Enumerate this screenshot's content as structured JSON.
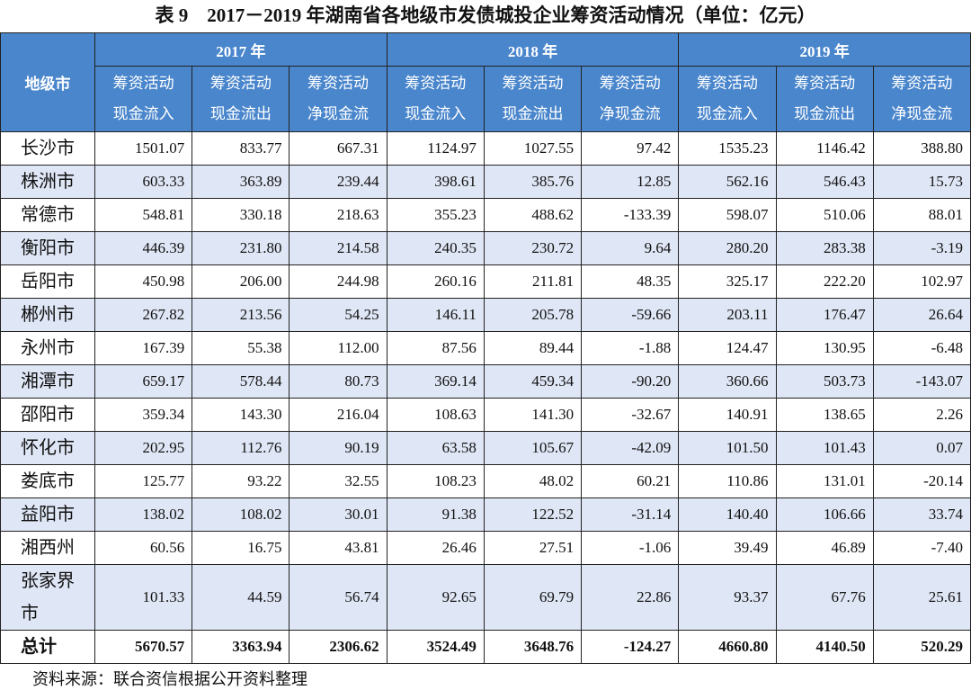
{
  "header": {
    "title": "表 9　2017－2019 年湖南省各地级市发债城投企业筹资活动情况（单位：亿元）"
  },
  "table": {
    "first_header": "地级市",
    "years": [
      "2017 年",
      "2018 年",
      "2019 年"
    ],
    "sub_headers": [
      [
        "筹资活动",
        "现金流入"
      ],
      [
        "筹资活动",
        "现金流出"
      ],
      [
        "筹资活动",
        "净现金流"
      ]
    ],
    "rows": [
      {
        "name": "长沙市",
        "values": [
          "1501.07",
          "833.77",
          "667.31",
          "1124.97",
          "1027.55",
          "97.42",
          "1535.23",
          "1146.42",
          "388.80"
        ]
      },
      {
        "name": "株洲市",
        "values": [
          "603.33",
          "363.89",
          "239.44",
          "398.61",
          "385.76",
          "12.85",
          "562.16",
          "546.43",
          "15.73"
        ]
      },
      {
        "name": "常德市",
        "values": [
          "548.81",
          "330.18",
          "218.63",
          "355.23",
          "488.62",
          "-133.39",
          "598.07",
          "510.06",
          "88.01"
        ]
      },
      {
        "name": "衡阳市",
        "values": [
          "446.39",
          "231.80",
          "214.58",
          "240.35",
          "230.72",
          "9.64",
          "280.20",
          "283.38",
          "-3.19"
        ]
      },
      {
        "name": "岳阳市",
        "values": [
          "450.98",
          "206.00",
          "244.98",
          "260.16",
          "211.81",
          "48.35",
          "325.17",
          "222.20",
          "102.97"
        ]
      },
      {
        "name": "郴州市",
        "values": [
          "267.82",
          "213.56",
          "54.25",
          "146.11",
          "205.78",
          "-59.66",
          "203.11",
          "176.47",
          "26.64"
        ]
      },
      {
        "name": "永州市",
        "values": [
          "167.39",
          "55.38",
          "112.00",
          "87.56",
          "89.44",
          "-1.88",
          "124.47",
          "130.95",
          "-6.48"
        ]
      },
      {
        "name": "湘潭市",
        "values": [
          "659.17",
          "578.44",
          "80.73",
          "369.14",
          "459.34",
          "-90.20",
          "360.66",
          "503.73",
          "-143.07"
        ]
      },
      {
        "name": "邵阳市",
        "values": [
          "359.34",
          "143.30",
          "216.04",
          "108.63",
          "141.30",
          "-32.67",
          "140.91",
          "138.65",
          "2.26"
        ]
      },
      {
        "name": "怀化市",
        "values": [
          "202.95",
          "112.76",
          "90.19",
          "63.58",
          "105.67",
          "-42.09",
          "101.50",
          "101.43",
          "0.07"
        ]
      },
      {
        "name": "娄底市",
        "values": [
          "125.77",
          "93.22",
          "32.55",
          "108.23",
          "48.02",
          "60.21",
          "110.86",
          "131.01",
          "-20.14"
        ]
      },
      {
        "name": "益阳市",
        "values": [
          "138.02",
          "108.02",
          "30.01",
          "91.38",
          "122.52",
          "-31.14",
          "140.40",
          "106.66",
          "33.74"
        ]
      },
      {
        "name": "湘西州",
        "values": [
          "60.56",
          "16.75",
          "43.81",
          "26.46",
          "27.51",
          "-1.06",
          "39.49",
          "46.89",
          "-7.40"
        ]
      },
      {
        "name": "张家界市",
        "values": [
          "101.33",
          "44.59",
          "56.74",
          "92.65",
          "69.79",
          "22.86",
          "93.37",
          "67.76",
          "25.61"
        ]
      }
    ],
    "total": {
      "name": "总计",
      "values": [
        "5670.57",
        "3363.94",
        "2306.62",
        "3524.49",
        "3648.76",
        "-124.27",
        "4660.80",
        "4140.50",
        "520.29"
      ]
    }
  },
  "footer": {
    "source": "资料来源：联合资信根据公开资料整理"
  }
}
